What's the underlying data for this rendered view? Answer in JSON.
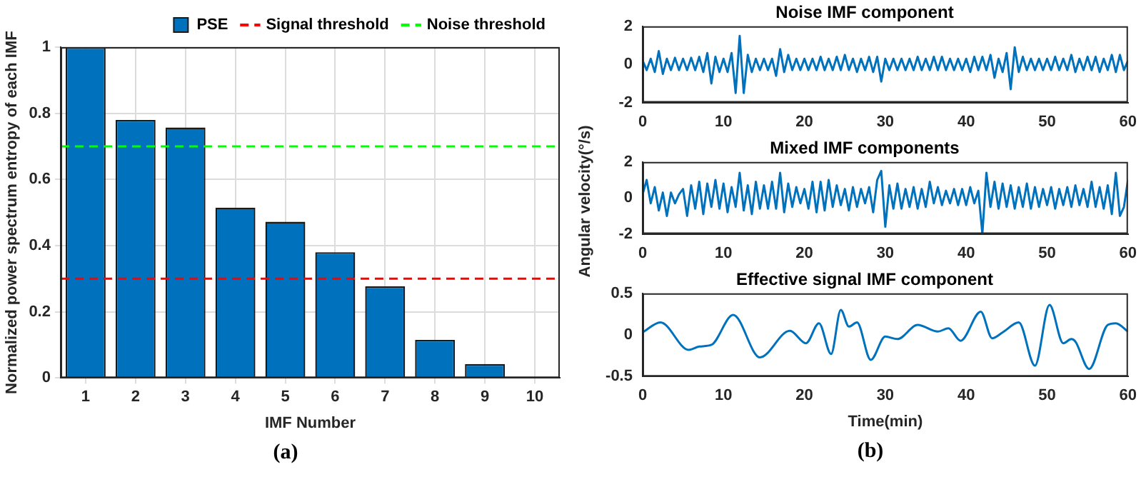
{
  "chart_data": [
    {
      "type": "bar",
      "xlabel": "IMF Number",
      "ylabel": "Normalized power spectrum entropy of each IMF",
      "categories": [
        "1",
        "2",
        "3",
        "4",
        "5",
        "6",
        "7",
        "8",
        "9",
        "10"
      ],
      "series": [
        {
          "name": "PSE",
          "color": "#0072bd",
          "values": [
            1,
            0.78,
            0.757,
            0.515,
            0.472,
            0.38,
            0.277,
            0.115,
            0.042,
            null
          ]
        }
      ],
      "ylim": [
        0,
        1
      ],
      "yticks": [
        0,
        0.2,
        0.4,
        0.6,
        0.8,
        1
      ],
      "grid": true,
      "legend": "top right",
      "ref_lines": [
        {
          "axis": "y",
          "value": 0.3,
          "label": "Signal threshold",
          "color": "#ff0000",
          "line_style": "dashed"
        },
        {
          "axis": "y",
          "value": 0.7,
          "label": "Noise threshold",
          "color": "#00ff00",
          "line_style": "dashed"
        }
      ],
      "annotations": [
        "(a)"
      ]
    },
    {
      "type": "line",
      "title": "Noise IMF component",
      "x": [
        0,
        0.5,
        1,
        1.5,
        2,
        2.5,
        3,
        3.5,
        4,
        4.5,
        5,
        5.5,
        6,
        6.5,
        7,
        7.5,
        8,
        8.5,
        9,
        9.5,
        10,
        10.5,
        11,
        11.5,
        12,
        12.5,
        13,
        13.5,
        14,
        14.5,
        15,
        15.5,
        16,
        16.5,
        17,
        17.5,
        18,
        18.5,
        19,
        19.5,
        20,
        20.5,
        21,
        21.5,
        22,
        22.5,
        23,
        23.5,
        24,
        24.5,
        25,
        25.5,
        26,
        26.5,
        27,
        27.5,
        28,
        28.5,
        29,
        29.5,
        30,
        30.5,
        31,
        31.5,
        32,
        32.5,
        33,
        33.5,
        34,
        34.5,
        35,
        35.5,
        36,
        36.5,
        37,
        37.5,
        38,
        38.5,
        39,
        39.5,
        40,
        40.5,
        41,
        41.5,
        42,
        42.5,
        43,
        43.5,
        44,
        44.5,
        45,
        45.5,
        46,
        46.5,
        47,
        47.5,
        48,
        48.5,
        49,
        49.5,
        50,
        50.5,
        51,
        51.5,
        52,
        52.5,
        53,
        53.5,
        54,
        54.5,
        55,
        55.5,
        56,
        56.5,
        57,
        57.5,
        58,
        58.5,
        59,
        59.5,
        60
      ],
      "series": [
        {
          "color": "#0072bd",
          "values": [
            0.2,
            -0.3,
            0.3,
            -0.4,
            0.7,
            -0.5,
            0.3,
            -0.3,
            0.35,
            -0.3,
            0.3,
            -0.3,
            0.35,
            -0.3,
            0.4,
            -0.4,
            0.6,
            -1.0,
            0.4,
            -0.4,
            0.3,
            -0.4,
            0.6,
            -1.5,
            1.5,
            -1.5,
            0.5,
            -0.4,
            0.3,
            -0.3,
            0.3,
            -0.3,
            0.3,
            -0.6,
            0.8,
            -0.4,
            0.5,
            -0.3,
            0.3,
            -0.3,
            0.3,
            -0.3,
            0.3,
            -0.3,
            0.4,
            -0.3,
            0.3,
            -0.3,
            0.4,
            -0.3,
            0.5,
            -0.3,
            0.3,
            -0.4,
            0.3,
            -0.3,
            0.4,
            -0.4,
            0.4,
            -0.9,
            0.3,
            -0.3,
            0.3,
            -0.3,
            0.3,
            -0.3,
            0.3,
            -0.3,
            0.4,
            -0.3,
            0.3,
            -0.3,
            0.4,
            -0.3,
            0.4,
            -0.3,
            0.3,
            -0.3,
            0.3,
            -0.3,
            0.3,
            -0.4,
            0.4,
            -0.3,
            0.4,
            -0.3,
            0.5,
            -0.7,
            0.3,
            -0.4,
            0.6,
            -1.3,
            0.9,
            -0.4,
            0.4,
            -0.3,
            0.3,
            -0.3,
            0.3,
            -0.3,
            0.3,
            -0.3,
            0.4,
            -0.3,
            0.3,
            -0.3,
            0.5,
            -0.4,
            0.3,
            -0.3,
            0.4,
            -0.3,
            0.4,
            -0.4,
            0.3,
            -0.3,
            0.5,
            -0.4,
            0.5,
            -0.3,
            0.2
          ]
        }
      ],
      "xlim": [
        0,
        60
      ],
      "xticks": [
        0,
        10,
        20,
        30,
        40,
        50,
        60
      ],
      "ylim": [
        -2,
        2
      ],
      "yticks": [
        -2,
        0,
        2
      ]
    },
    {
      "type": "line",
      "title": "Mixed IMF components",
      "ylabel": "Angular velocity(°/s)",
      "x": [
        0,
        0.5,
        1,
        1.5,
        2,
        2.5,
        3,
        3.5,
        4,
        4.5,
        5,
        5.5,
        6,
        6.5,
        7,
        7.5,
        8,
        8.5,
        9,
        9.5,
        10,
        10.5,
        11,
        11.5,
        12,
        12.5,
        13,
        13.5,
        14,
        14.5,
        15,
        15.5,
        16,
        16.5,
        17,
        17.5,
        18,
        18.5,
        19,
        19.5,
        20,
        20.5,
        21,
        21.5,
        22,
        22.5,
        23,
        23.5,
        24,
        24.5,
        25,
        25.5,
        26,
        26.5,
        27,
        27.5,
        28,
        28.5,
        29,
        29.5,
        30,
        30.5,
        31,
        31.5,
        32,
        32.5,
        33,
        33.5,
        34,
        34.5,
        35,
        35.5,
        36,
        36.5,
        37,
        37.5,
        38,
        38.5,
        39,
        39.5,
        40,
        40.5,
        41,
        41.5,
        42,
        42.5,
        43,
        43.5,
        44,
        44.5,
        45,
        45.5,
        46,
        46.5,
        47,
        47.5,
        48,
        48.5,
        49,
        49.5,
        50,
        50.5,
        51,
        51.5,
        52,
        52.5,
        53,
        53.5,
        54,
        54.5,
        55,
        55.5,
        56,
        56.5,
        57,
        57.5,
        58,
        58.5,
        59,
        59.5,
        60
      ],
      "series": [
        {
          "color": "#0072bd",
          "values": [
            0.2,
            1.0,
            -0.3,
            0.6,
            -0.7,
            0.3,
            -1.0,
            0.3,
            -0.3,
            0.2,
            0.5,
            -1.0,
            0.7,
            -0.6,
            0.9,
            -0.9,
            0.8,
            -0.5,
            1.0,
            -0.6,
            0.8,
            -0.8,
            0.6,
            -0.5,
            1.4,
            -0.7,
            0.7,
            -0.9,
            0.9,
            -0.6,
            0.7,
            -0.6,
            0.9,
            -0.6,
            1.4,
            -0.8,
            0.8,
            -0.5,
            0.6,
            -0.3,
            0.5,
            -0.6,
            0.9,
            -0.8,
            0.9,
            -0.7,
            1.0,
            -0.5,
            0.7,
            -0.4,
            0.5,
            -0.7,
            0.6,
            -0.5,
            0.5,
            -0.3,
            0.6,
            -0.8,
            1.0,
            1.5,
            -1.6,
            0.7,
            -0.6,
            0.8,
            -0.6,
            0.5,
            -0.5,
            0.6,
            -0.6,
            0.5,
            -0.5,
            0.9,
            -0.3,
            0.6,
            -0.4,
            0.4,
            -0.3,
            0.5,
            -0.4,
            0.5,
            -0.4,
            0.6,
            -0.3,
            0.4,
            -2.0,
            1.4,
            -0.5,
            0.9,
            -0.6,
            0.8,
            -0.5,
            0.7,
            -0.6,
            0.6,
            -0.5,
            0.8,
            -0.6,
            0.6,
            -0.5,
            0.5,
            -0.4,
            0.6,
            -0.6,
            0.5,
            -0.4,
            0.6,
            -0.5,
            0.7,
            -0.4,
            0.5,
            -0.5,
            0.9,
            -0.5,
            0.6,
            -0.6,
            0.7,
            -0.9,
            1.4,
            -1.0,
            -0.5,
            1.0
          ]
        }
      ],
      "xlim": [
        0,
        60
      ],
      "xticks": [
        0,
        10,
        20,
        30,
        40,
        50,
        60
      ],
      "ylim": [
        -2,
        2
      ],
      "yticks": [
        -2,
        0,
        2
      ]
    },
    {
      "type": "line",
      "title": "Effective signal IMF component",
      "xlabel": "Time(min)",
      "x": [
        0,
        2.2,
        5.7,
        7,
        8.5,
        11.2,
        14.5,
        18.2,
        20.2,
        21.8,
        23.3,
        24.5,
        25.5,
        26.5,
        28.2,
        30,
        31.5,
        34,
        36.5,
        37.8,
        39.3,
        41.8,
        43.2,
        44.5,
        46.5,
        48.5,
        50.3,
        52,
        53,
        53.5,
        55.2,
        57.5,
        58.5,
        60
      ],
      "series": [
        {
          "color": "#0072bd",
          "values": [
            0.03,
            0.15,
            -0.18,
            -0.14,
            -0.12,
            0.24,
            -0.27,
            0.05,
            -0.1,
            0.14,
            -0.23,
            0.3,
            0.1,
            0.15,
            -0.3,
            -0.02,
            -0.05,
            0.12,
            0.04,
            0.08,
            -0.07,
            0.28,
            -0.04,
            0.03,
            0.15,
            -0.37,
            0.36,
            -0.1,
            -0.05,
            -0.08,
            -0.41,
            0.12,
            0.14,
            0.04
          ]
        }
      ],
      "xlim": [
        0,
        60
      ],
      "xticks": [
        0,
        10,
        20,
        30,
        40,
        50,
        60
      ],
      "ylim": [
        -0.5,
        0.5
      ],
      "yticks": [
        -0.5,
        0,
        0.5
      ],
      "annotations": [
        "(b)"
      ]
    }
  ]
}
